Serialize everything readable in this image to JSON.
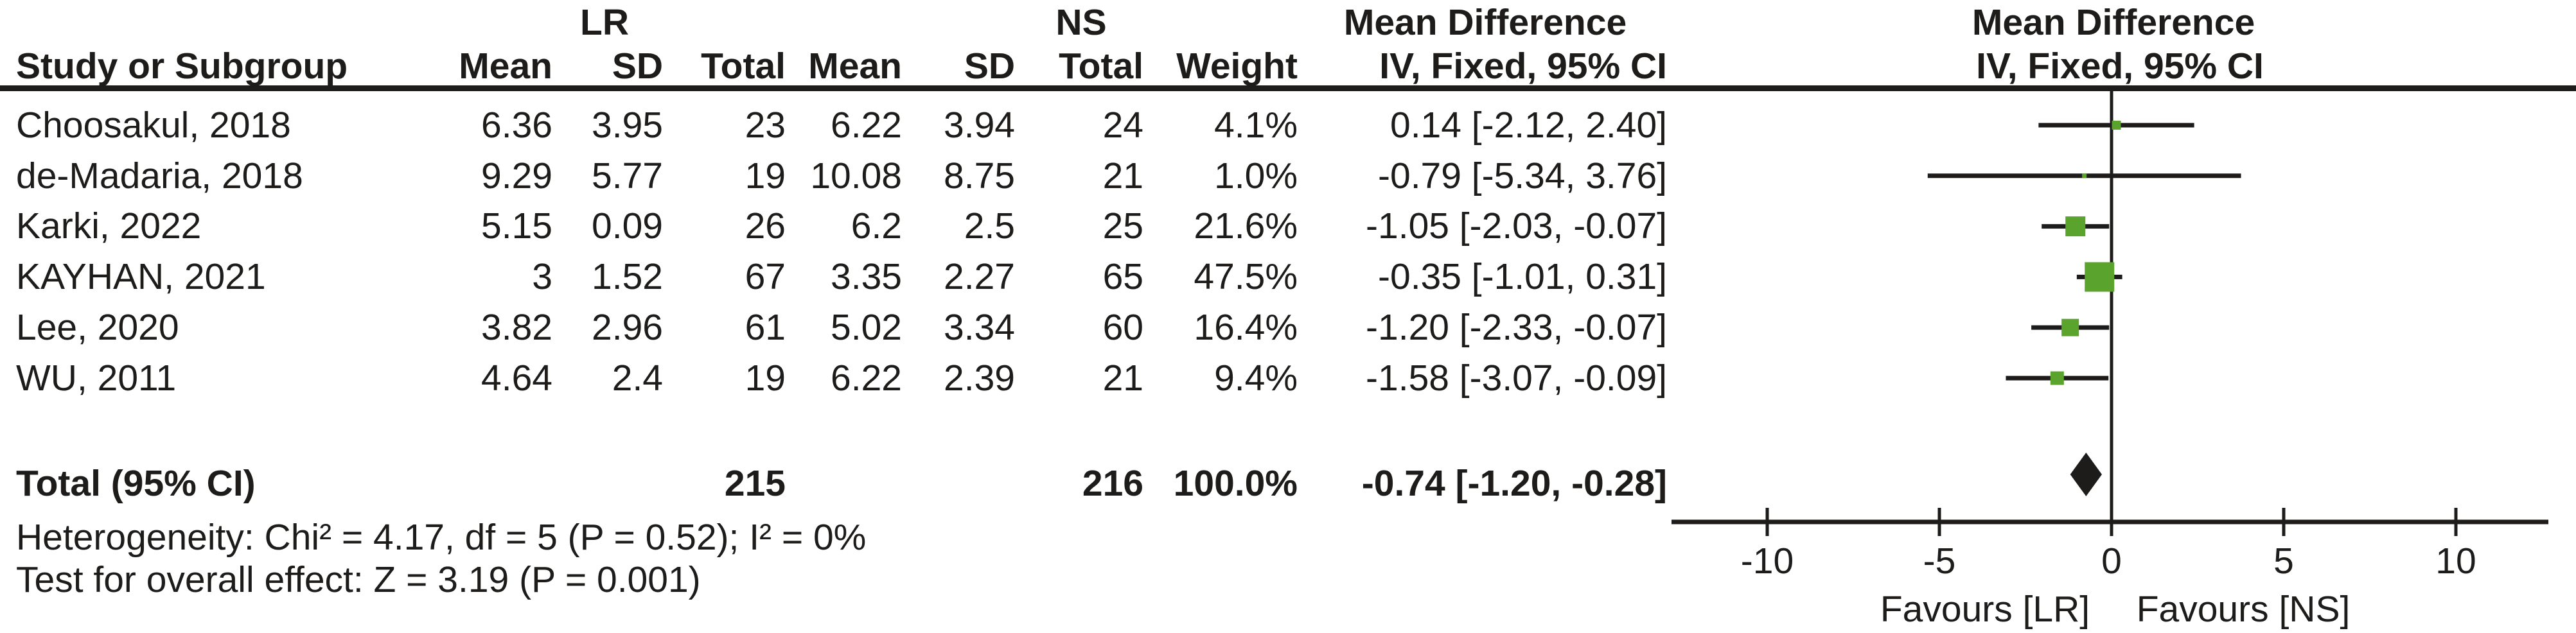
{
  "table": {
    "group_headers": {
      "lr": "LR",
      "ns": "NS",
      "md_text": "Mean Difference",
      "md_plot": "Mean Difference"
    },
    "columns": {
      "study": "Study or Subgroup",
      "lr_mean": "Mean",
      "lr_sd": "SD",
      "lr_total": "Total",
      "ns_mean": "Mean",
      "ns_sd": "SD",
      "ns_total": "Total",
      "weight": "Weight",
      "ci": "IV, Fixed, 95% CI",
      "ci_plot": "IV, Fixed, 95% CI"
    },
    "rows": [
      {
        "study": "Choosakul, 2018",
        "lr_mean": "6.36",
        "lr_sd": "3.95",
        "lr_total": "23",
        "ns_mean": "6.22",
        "ns_sd": "3.94",
        "ns_total": "24",
        "weight": "4.1%",
        "md_ci": "0.14 [-2.12, 2.40]"
      },
      {
        "study": "de-Madaria, 2018",
        "lr_mean": "9.29",
        "lr_sd": "5.77",
        "lr_total": "19",
        "ns_mean": "10.08",
        "ns_sd": "8.75",
        "ns_total": "21",
        "weight": "1.0%",
        "md_ci": "-0.79 [-5.34, 3.76]"
      },
      {
        "study": "Karki, 2022",
        "lr_mean": "5.15",
        "lr_sd": "0.09",
        "lr_total": "26",
        "ns_mean": "6.2",
        "ns_sd": "2.5",
        "ns_total": "25",
        "weight": "21.6%",
        "md_ci": "-1.05 [-2.03, -0.07]"
      },
      {
        "study": "KAYHAN, 2021",
        "lr_mean": "3",
        "lr_sd": "1.52",
        "lr_total": "67",
        "ns_mean": "3.35",
        "ns_sd": "2.27",
        "ns_total": "65",
        "weight": "47.5%",
        "md_ci": "-0.35 [-1.01, 0.31]"
      },
      {
        "study": "Lee, 2020",
        "lr_mean": "3.82",
        "lr_sd": "2.96",
        "lr_total": "61",
        "ns_mean": "5.02",
        "ns_sd": "3.34",
        "ns_total": "60",
        "weight": "16.4%",
        "md_ci": "-1.20 [-2.33, -0.07]"
      },
      {
        "study": "WU, 2011",
        "lr_mean": "4.64",
        "lr_sd": "2.4",
        "lr_total": "19",
        "ns_mean": "6.22",
        "ns_sd": "2.39",
        "ns_total": "21",
        "weight": "9.4%",
        "md_ci": "-1.58 [-3.07, -0.09]"
      }
    ],
    "total_row": {
      "label": "Total (95% CI)",
      "lr_total": "215",
      "ns_total": "216",
      "weight": "100.0%",
      "md_ci": "-0.74 [-1.20, -0.28]"
    },
    "heterogeneity": "Heterogeneity: Chi² = 4.17, df = 5 (P = 0.52); I² = 0%",
    "overall_effect": "Test for overall effect: Z = 3.19 (P = 0.001)"
  },
  "chart_data": {
    "type": "forest",
    "effect_measure": "Mean Difference, IV, Fixed, 95% CI",
    "axis_ticks": [
      -10,
      -5,
      0,
      5,
      10
    ],
    "xlim": [
      -12.8,
      13
    ],
    "favours_left": "Favours [LR]",
    "favours_right": "Favours [NS]",
    "marker_color": "#5aa32d",
    "line_color": "#1d1c1a",
    "studies": [
      {
        "name": "Choosakul, 2018",
        "md": 0.14,
        "ci_low": -2.12,
        "ci_high": 2.4,
        "weight_pct": 4.1
      },
      {
        "name": "de-Madaria, 2018",
        "md": -0.79,
        "ci_low": -5.34,
        "ci_high": 3.76,
        "weight_pct": 1.0
      },
      {
        "name": "Karki, 2022",
        "md": -1.05,
        "ci_low": -2.03,
        "ci_high": -0.07,
        "weight_pct": 21.6
      },
      {
        "name": "KAYHAN, 2021",
        "md": -0.35,
        "ci_low": -1.01,
        "ci_high": 0.31,
        "weight_pct": 47.5
      },
      {
        "name": "Lee, 2020",
        "md": -1.2,
        "ci_low": -2.33,
        "ci_high": -0.07,
        "weight_pct": 16.4
      },
      {
        "name": "WU, 2011",
        "md": -1.58,
        "ci_low": -3.07,
        "ci_high": -0.09,
        "weight_pct": 9.4
      }
    ],
    "total": {
      "md": -0.74,
      "ci_low": -1.2,
      "ci_high": -0.28
    }
  }
}
